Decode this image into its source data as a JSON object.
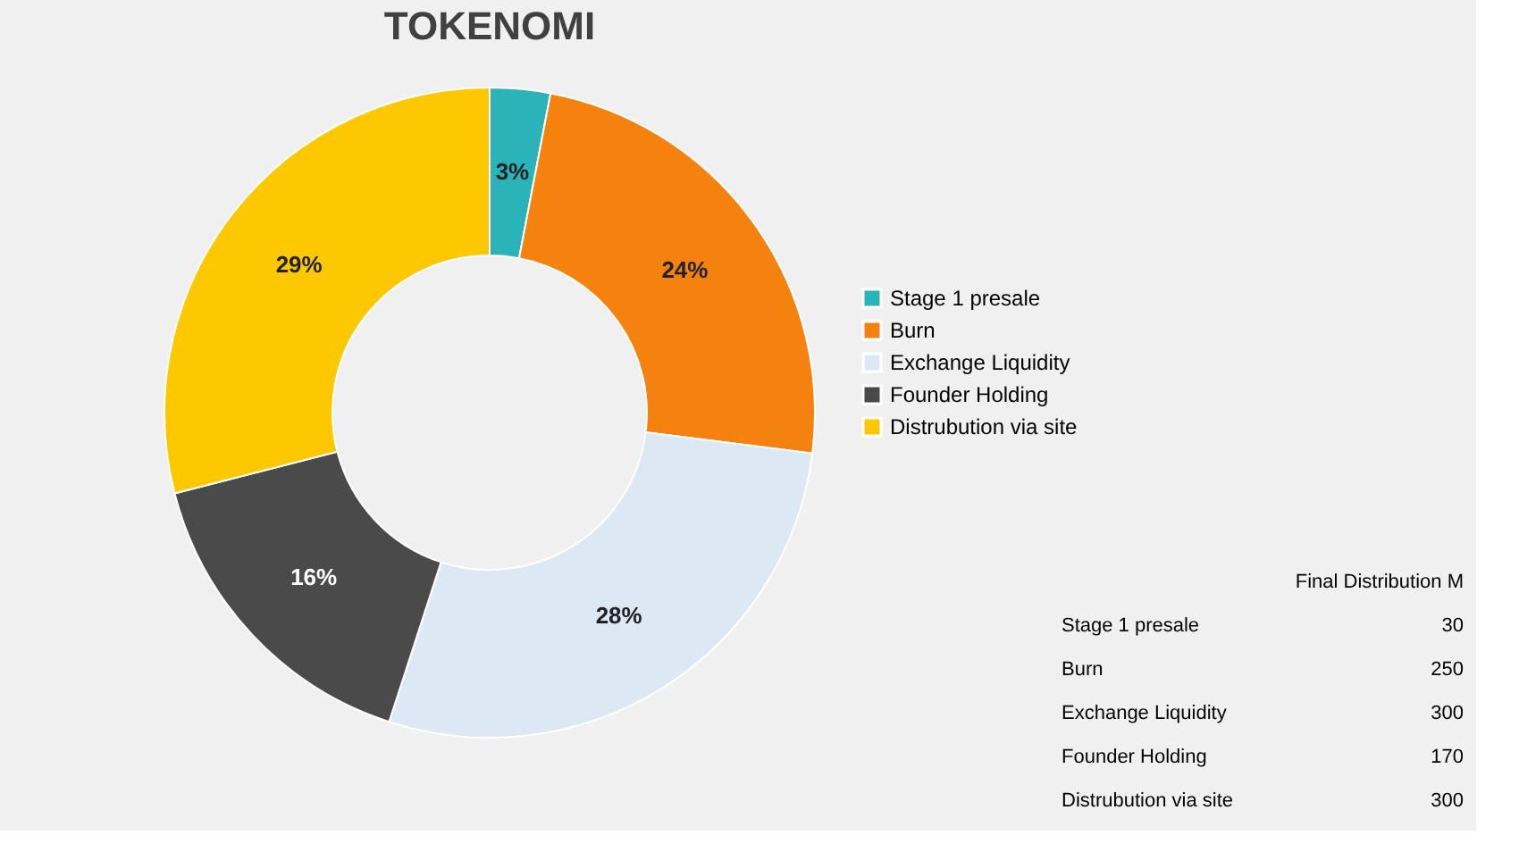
{
  "chart_data": [
    {
      "type": "donut",
      "title": "TOKENOMI",
      "categories": [
        "Stage 1 presale",
        "Burn",
        "Exchange Liquidity",
        "Founder Holding",
        "Distrubution via site"
      ],
      "values": [
        3,
        24,
        28,
        16,
        29
      ],
      "colors": [
        "#2ab3b8",
        "#f5820f",
        "#dde8f5",
        "#4a4a4a",
        "#fec800"
      ],
      "value_labels": [
        "3%",
        "24%",
        "28%",
        "16%",
        "29%"
      ],
      "legend": "right"
    },
    {
      "type": "other",
      "title": "Final Distribution M",
      "categories": [
        "Stage 1 presale",
        "Burn",
        "Exchange Liquidity",
        "Founder Holding",
        "Distrubution via site"
      ],
      "values": [
        30,
        250,
        300,
        170,
        300
      ],
      "data_labels": true
    }
  ]
}
